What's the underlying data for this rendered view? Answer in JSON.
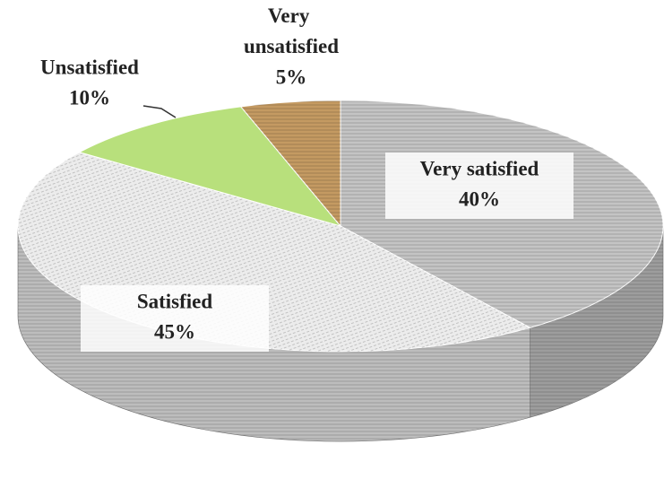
{
  "chart_data": {
    "type": "pie",
    "categories": [
      "Very satisfied",
      "Satisfied",
      "Unsatisfied",
      "Very unsatisfied"
    ],
    "values": [
      40,
      45,
      10,
      5
    ],
    "value_labels": [
      "40%",
      "45%",
      "10%",
      "5%"
    ],
    "colors": [
      "#c4c4c4",
      "#ececec",
      "#b8e07c",
      "#c49a62"
    ]
  }
}
